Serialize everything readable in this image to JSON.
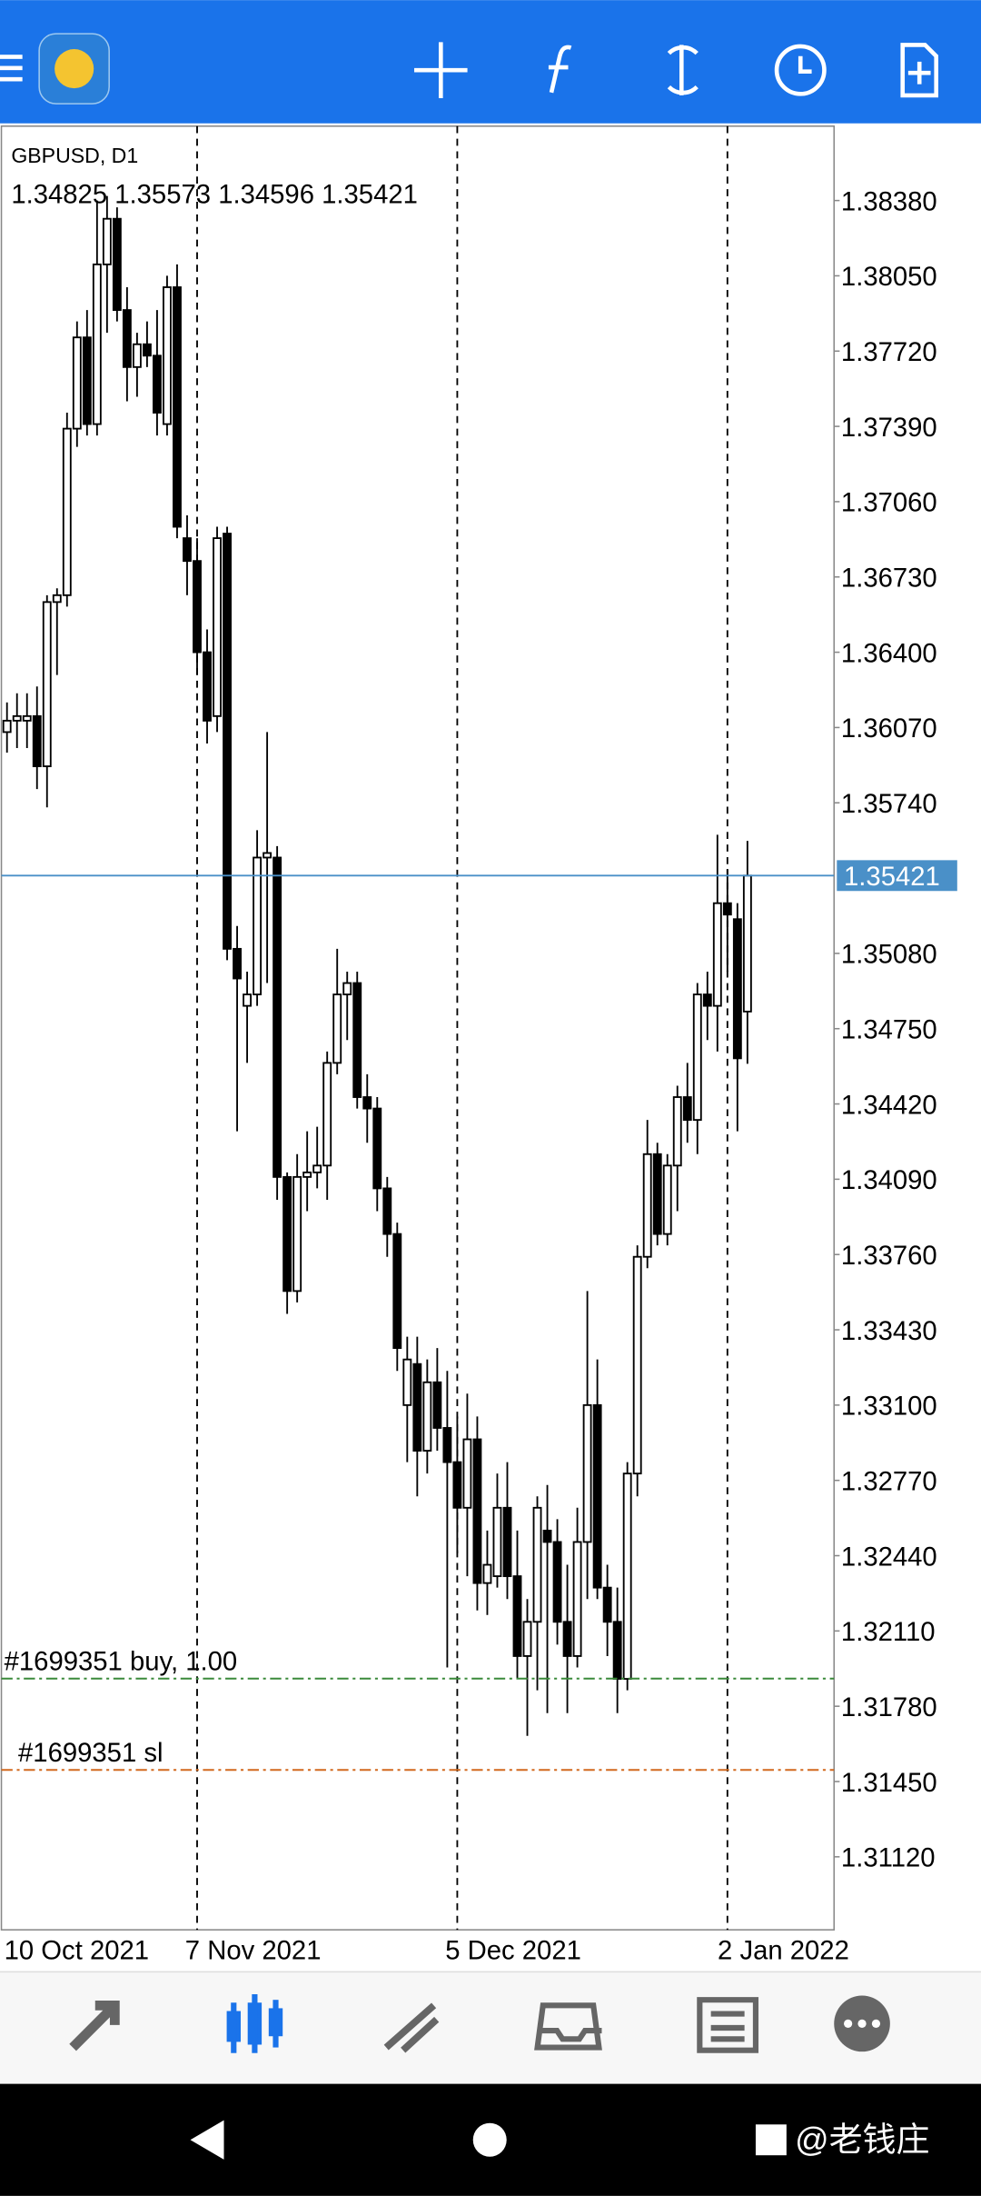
{
  "chart_data": {
    "type": "candlestick",
    "title": "GBPUSD, D1",
    "categories": [
      "10 Oct 2021",
      null,
      null,
      null,
      null,
      null,
      null,
      null,
      null,
      null,
      null,
      null,
      null,
      null,
      null,
      null,
      null,
      null,
      null,
      "7 Nov 2021",
      null,
      null,
      null,
      null,
      null,
      null,
      null,
      null,
      null,
      null,
      null,
      null,
      null,
      null,
      null,
      null,
      null,
      null,
      null,
      null,
      null,
      null,
      null,
      null,
      null,
      "5 Dec 2021",
      null,
      null,
      null,
      null,
      null,
      null,
      null,
      null,
      null,
      null,
      null,
      null,
      null,
      null,
      null,
      null,
      null,
      null,
      null,
      null,
      null,
      null,
      null,
      null,
      null,
      null,
      "2 Jan 2022",
      null,
      null
    ],
    "ohlc": [
      [
        1.3605,
        1.3618,
        1.3596,
        1.361
      ],
      [
        1.361,
        1.3622,
        1.3598,
        1.3612
      ],
      [
        1.361,
        1.3622,
        1.3598,
        1.3612
      ],
      [
        1.3612,
        1.3625,
        1.358,
        1.359
      ],
      [
        1.359,
        1.3665,
        1.3572,
        1.3662
      ],
      [
        1.3662,
        1.3668,
        1.363,
        1.3665
      ],
      [
        1.3665,
        1.3745,
        1.366,
        1.3738
      ],
      [
        1.3738,
        1.3785,
        1.373,
        1.3778
      ],
      [
        1.3778,
        1.379,
        1.3735,
        1.374
      ],
      [
        1.374,
        1.3838,
        1.3735,
        1.381
      ],
      [
        1.381,
        1.384,
        1.378,
        1.383
      ],
      [
        1.383,
        1.3835,
        1.3785,
        1.379
      ],
      [
        1.379,
        1.38,
        1.375,
        1.3765
      ],
      [
        1.3765,
        1.378,
        1.3752,
        1.3775
      ],
      [
        1.3775,
        1.3785,
        1.3765,
        1.377
      ],
      [
        1.377,
        1.379,
        1.3735,
        1.3745
      ],
      [
        1.374,
        1.3805,
        1.3735,
        1.38
      ],
      [
        1.38,
        1.381,
        1.369,
        1.3695
      ],
      [
        1.369,
        1.37,
        1.3665,
        1.368
      ],
      [
        1.368,
        1.369,
        1.363,
        1.364
      ],
      [
        1.364,
        1.365,
        1.36,
        1.361
      ],
      [
        1.3612,
        1.3695,
        1.3605,
        1.369
      ],
      [
        1.3692,
        1.3695,
        1.3505,
        1.351
      ],
      [
        1.351,
        1.352,
        1.343,
        1.3497
      ],
      [
        1.3485,
        1.35,
        1.346,
        1.349
      ],
      [
        1.349,
        1.3562,
        1.3485,
        1.355
      ],
      [
        1.355,
        1.3605,
        1.3495,
        1.3552
      ],
      [
        1.355,
        1.3555,
        1.34,
        1.341
      ],
      [
        1.341,
        1.3412,
        1.335,
        1.336
      ],
      [
        1.336,
        1.342,
        1.3355,
        1.341
      ],
      [
        1.341,
        1.343,
        1.3395,
        1.3412
      ],
      [
        1.3412,
        1.3432,
        1.3405,
        1.3415
      ],
      [
        1.3415,
        1.3465,
        1.34,
        1.346
      ],
      [
        1.346,
        1.351,
        1.3455,
        1.349
      ],
      [
        1.349,
        1.35,
        1.347,
        1.3495
      ],
      [
        1.3495,
        1.35,
        1.344,
        1.3445
      ],
      [
        1.3445,
        1.3455,
        1.3425,
        1.344
      ],
      [
        1.344,
        1.3445,
        1.3395,
        1.3405
      ],
      [
        1.3405,
        1.341,
        1.3375,
        1.3385
      ],
      [
        1.3385,
        1.339,
        1.3325,
        1.3335
      ],
      [
        1.331,
        1.334,
        1.3285,
        1.333
      ],
      [
        1.3328,
        1.334,
        1.327,
        1.329
      ],
      [
        1.329,
        1.333,
        1.328,
        1.332
      ],
      [
        1.332,
        1.3335,
        1.329,
        1.33
      ],
      [
        1.33,
        1.3325,
        1.3195,
        1.3285
      ],
      [
        1.3285,
        1.3305,
        1.3245,
        1.3265
      ],
      [
        1.3265,
        1.3315,
        1.3235,
        1.3295
      ],
      [
        1.3295,
        1.3305,
        1.322,
        1.3232
      ],
      [
        1.3232,
        1.3255,
        1.3218,
        1.324
      ],
      [
        1.3235,
        1.328,
        1.323,
        1.3265
      ],
      [
        1.3265,
        1.3285,
        1.3225,
        1.3235
      ],
      [
        1.3235,
        1.3255,
        1.319,
        1.32
      ],
      [
        1.32,
        1.3225,
        1.3165,
        1.3215
      ],
      [
        1.3215,
        1.327,
        1.3185,
        1.3265
      ],
      [
        1.3255,
        1.3275,
        1.3175,
        1.325
      ],
      [
        1.325,
        1.326,
        1.3205,
        1.3215
      ],
      [
        1.3215,
        1.324,
        1.3175,
        1.32
      ],
      [
        1.32,
        1.3265,
        1.3195,
        1.325
      ],
      [
        1.325,
        1.336,
        1.3225,
        1.331
      ],
      [
        1.331,
        1.333,
        1.3225,
        1.323
      ],
      [
        1.323,
        1.324,
        1.32,
        1.3215
      ],
      [
        1.3215,
        1.323,
        1.3175,
        1.319
      ],
      [
        1.319,
        1.3285,
        1.3185,
        1.328
      ],
      [
        1.328,
        1.338,
        1.327,
        1.3375
      ],
      [
        1.3375,
        1.3435,
        1.337,
        1.342
      ],
      [
        1.342,
        1.3425,
        1.338,
        1.3385
      ],
      [
        1.3385,
        1.342,
        1.338,
        1.3415
      ],
      [
        1.3415,
        1.345,
        1.3395,
        1.3445
      ],
      [
        1.3445,
        1.346,
        1.3425,
        1.3435
      ],
      [
        1.3435,
        1.3495,
        1.342,
        1.349
      ],
      [
        1.349,
        1.35,
        1.347,
        1.3485
      ],
      [
        1.3485,
        1.356,
        1.3465,
        1.353
      ],
      [
        1.353,
        1.3545,
        1.35,
        1.3525
      ],
      [
        1.3523,
        1.353,
        1.343,
        1.3462
      ],
      [
        1.34825,
        1.35573,
        1.34596,
        1.35421
      ]
    ],
    "ylim": [
      1.308,
      1.38706
    ],
    "yticks": [
      {
        "value": 1.3838,
        "label": "1.38380"
      },
      {
        "value": 1.3805,
        "label": "1.38050"
      },
      {
        "value": 1.3772,
        "label": "1.37720"
      },
      {
        "value": 1.3739,
        "label": "1.37390"
      },
      {
        "value": 1.3706,
        "label": "1.37060"
      },
      {
        "value": 1.3673,
        "label": "1.36730"
      },
      {
        "value": 1.364,
        "label": "1.36400"
      },
      {
        "value": 1.3607,
        "label": "1.36070"
      },
      {
        "value": 1.3574,
        "label": "1.35740"
      },
      {
        "value": 1.3508,
        "label": "1.35080"
      },
      {
        "value": 1.3475,
        "label": "1.34750"
      },
      {
        "value": 1.3442,
        "label": "1.34420"
      },
      {
        "value": 1.3409,
        "label": "1.34090"
      },
      {
        "value": 1.3376,
        "label": "1.33760"
      },
      {
        "value": 1.3343,
        "label": "1.33430"
      },
      {
        "value": 1.331,
        "label": "1.33100"
      },
      {
        "value": 1.3277,
        "label": "1.32770"
      },
      {
        "value": 1.3244,
        "label": "1.32440"
      },
      {
        "value": 1.3211,
        "label": "1.32110"
      },
      {
        "value": 1.3178,
        "label": "1.31780"
      },
      {
        "value": 1.3145,
        "label": "1.31450"
      },
      {
        "value": 1.3112,
        "label": "1.31120"
      }
    ],
    "orders": [
      {
        "label": "#1699351 buy, 1.00",
        "price": 1.31901,
        "color": "#3a8a3a"
      },
      {
        "label": "#1699351 sl",
        "price": 1.31501,
        "color": "#d2691e"
      }
    ],
    "bull_color": "#ffffff",
    "bear_color": "#000000",
    "price_line_color": "#4a90c8"
  },
  "watermark": "@老钱庄"
}
